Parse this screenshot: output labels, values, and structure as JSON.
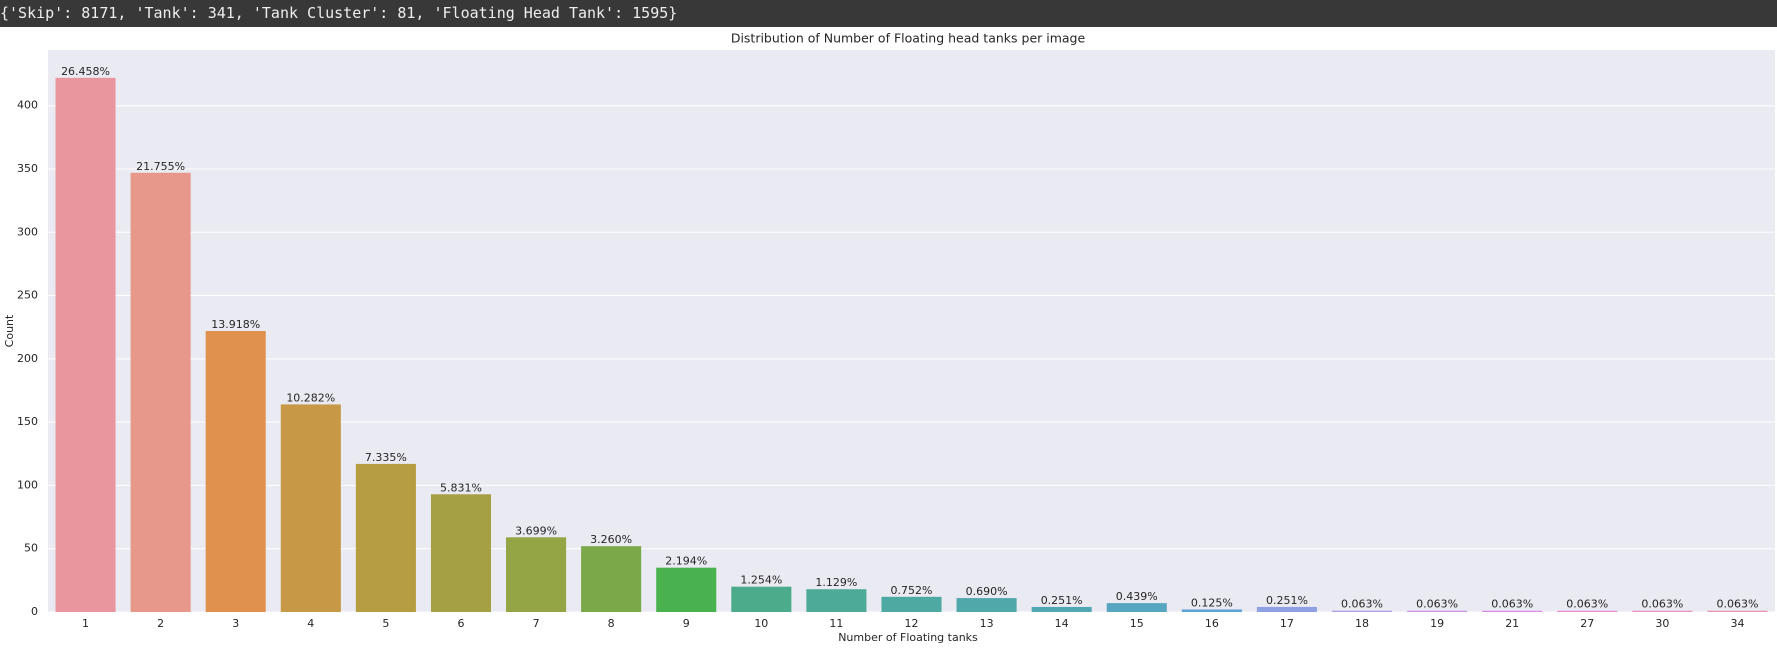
{
  "header": {
    "text": "{'Skip': 8171, 'Tank': 341, 'Tank Cluster': 81, 'Floating Head Tank': 1595}"
  },
  "chart_data": {
    "type": "bar",
    "title": "Distribution of Number of Floating head tanks per image",
    "x_label": "Number of Floating tanks",
    "y_label": "Count",
    "categories": [
      "1",
      "2",
      "3",
      "4",
      "5",
      "6",
      "7",
      "8",
      "9",
      "10",
      "11",
      "12",
      "13",
      "14",
      "15",
      "16",
      "17",
      "18",
      "19",
      "21",
      "27",
      "30",
      "34"
    ],
    "values": [
      422,
      347,
      222,
      164,
      117,
      93,
      59,
      52,
      35,
      20,
      18,
      12,
      11,
      4,
      7,
      2,
      4,
      1,
      1,
      1,
      1,
      1,
      1
    ],
    "bar_labels": [
      "26.458%",
      "21.755%",
      "13.918%",
      "10.282%",
      "7.335%",
      "5.831%",
      "3.699%",
      "3.260%",
      "2.194%",
      "1.254%",
      "1.129%",
      "0.752%",
      "0.690%",
      "0.251%",
      "0.439%",
      "0.125%",
      "0.251%",
      "0.063%",
      "0.063%",
      "0.063%",
      "0.063%",
      "0.063%",
      "0.063%"
    ],
    "colors": [
      "#e9969f",
      "#e8988a",
      "#df914d",
      "#c79846",
      "#b69d41",
      "#a5a043",
      "#93a545",
      "#7ba848",
      "#4ab14f",
      "#4bab8a",
      "#4daa99",
      "#4fa9a3",
      "#50a8ab",
      "#52a7b4",
      "#56a5c1",
      "#5fa1d4",
      "#8fa0e3",
      "#b19be6",
      "#c994e6",
      "#db8ee5",
      "#e58ed6",
      "#e891c3",
      "#e993b3"
    ],
    "ylim": [
      0,
      444
    ],
    "yticks": [
      0,
      50,
      100,
      150,
      200,
      250,
      300,
      350,
      400
    ],
    "grid": true
  }
}
